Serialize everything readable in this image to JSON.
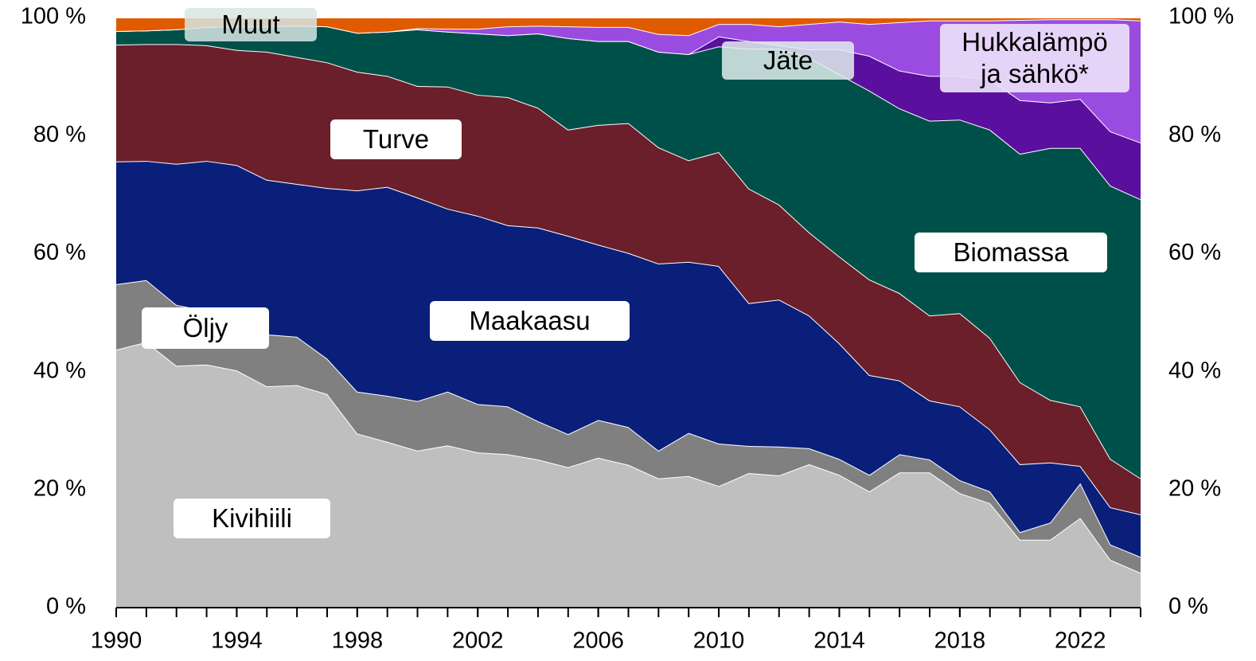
{
  "chart_data": {
    "type": "stacked_area",
    "x": [
      1990,
      1991,
      1992,
      1993,
      1994,
      1995,
      1996,
      1997,
      1998,
      1999,
      2000,
      2001,
      2002,
      2003,
      2004,
      2005,
      2006,
      2007,
      2008,
      2009,
      2010,
      2011,
      2012,
      2013,
      2014,
      2015,
      2016,
      2017,
      2018,
      2019,
      2020,
      2021,
      2022,
      2023,
      2024
    ],
    "xlim": [
      1990,
      2024
    ],
    "xticks": [
      1990,
      1994,
      1998,
      2002,
      2006,
      2010,
      2014,
      2018,
      2022
    ],
    "ylim": [
      0,
      100
    ],
    "yticks": [
      {
        "value": 0,
        "label": "0 %"
      },
      {
        "value": 20,
        "label": "20 %"
      },
      {
        "value": 40,
        "label": "40 %"
      },
      {
        "value": 60,
        "label": "60 %"
      },
      {
        "value": 80,
        "label": "80 %"
      },
      {
        "value": 100,
        "label": "100 %"
      }
    ],
    "series": [
      {
        "name": "Kivihiili",
        "color": "#bfbfbf",
        "values": [
          43.7,
          45,
          41,
          41.2,
          40.2,
          37.5,
          37.7,
          36.2,
          29.5,
          28.1,
          26.6,
          27.5,
          26.3,
          26,
          25.1,
          23.8,
          25.4,
          24.2,
          21.9,
          22.3,
          20.6,
          22.8,
          22.4,
          24.3,
          22.5,
          19.7,
          22.9,
          22.9,
          19.4,
          17.7,
          11.5,
          11.5,
          15.2,
          8.1,
          5.9
        ]
      },
      {
        "name": "Öljy",
        "color": "#808080",
        "values": [
          11.1,
          10.5,
          10.3,
          9.1,
          8.8,
          8.8,
          8.2,
          6,
          7.1,
          7.8,
          8.4,
          9.1,
          8.2,
          8.1,
          6.5,
          5.6,
          6.4,
          6.4,
          4.7,
          7.3,
          7.2,
          4.6,
          4.9,
          2.7,
          2.7,
          2.8,
          3.1,
          2.2,
          2.2,
          2,
          1.3,
          2.9,
          5.9,
          2.6,
          2.7
        ]
      },
      {
        "name": "Maakaasu",
        "color": "#0a1f7a",
        "values": [
          20.8,
          20.2,
          23.9,
          25.4,
          26,
          26.2,
          25.9,
          28.9,
          34.1,
          35.4,
          34.5,
          31,
          31.9,
          30.7,
          32.8,
          33.6,
          29.7,
          29.5,
          31.7,
          29,
          30.1,
          24.2,
          24.9,
          22.5,
          19.6,
          16.9,
          12.5,
          10,
          12.5,
          10.5,
          11.5,
          10.2,
          2.9,
          6.3,
          7.2
        ]
      },
      {
        "name": "Turve",
        "color": "#6a1f2a",
        "values": [
          19.8,
          19.8,
          20.3,
          19.6,
          19.5,
          21.7,
          21.5,
          21.3,
          20.1,
          18.8,
          18.9,
          20.7,
          20.5,
          21.7,
          20.3,
          18,
          20.3,
          22,
          19.7,
          17.2,
          19.3,
          19.4,
          16.1,
          14.1,
          14.7,
          16.2,
          14.8,
          14.4,
          15.8,
          15.5,
          13.9,
          10.6,
          10.1,
          8.2,
          6.1
        ]
      },
      {
        "name": "Biomassa",
        "color": "#00504a",
        "values": [
          2.3,
          2.3,
          2.5,
          3.1,
          4,
          4.3,
          5.3,
          6.1,
          6.6,
          7.5,
          9.6,
          9.3,
          10.4,
          10.5,
          12.6,
          15.5,
          14.2,
          13.9,
          16.2,
          18,
          17.9,
          23.7,
          26.4,
          29.6,
          30.9,
          32,
          31.3,
          33,
          32.8,
          35.3,
          38.7,
          42.7,
          43.8,
          46.3,
          47.3
        ]
      },
      {
        "name": "Jäte",
        "color": "#5a0f9e",
        "values": [
          0,
          0,
          0,
          0,
          0,
          0,
          0,
          0,
          0,
          0,
          0,
          0,
          0,
          0,
          0,
          0,
          0,
          0,
          0,
          0,
          1.7,
          1.3,
          0.6,
          1.4,
          4.2,
          5.9,
          6.4,
          7.6,
          7.4,
          8.5,
          9.1,
          7.7,
          8.3,
          9.2,
          9.6
        ]
      },
      {
        "name": "Hukkalämpö ja sähkö*",
        "color": "#9b4ce0",
        "values": [
          0,
          0,
          0,
          0,
          0,
          0,
          0,
          0,
          0,
          0,
          0.2,
          0.5,
          0.8,
          1.5,
          1.3,
          2,
          2.4,
          2.4,
          3,
          3.2,
          2.1,
          2.9,
          3.2,
          4.3,
          4.7,
          5.4,
          8.2,
          9.4,
          9.4,
          10,
          13.6,
          14.1,
          13.5,
          19,
          20.7
        ]
      },
      {
        "name": "Muut",
        "color": "#e05a00",
        "values": [
          2.3,
          2.2,
          2,
          1.6,
          1.5,
          1.5,
          1.4,
          1.5,
          2.6,
          2.4,
          1.8,
          1.9,
          1.9,
          1.5,
          1.4,
          1.5,
          1.6,
          1.6,
          2.8,
          3,
          1.1,
          1.1,
          1.5,
          1.1,
          0.7,
          1.1,
          0.8,
          0.5,
          0.5,
          0.5,
          0.4,
          0.3,
          0.3,
          0.3,
          0.5
        ]
      }
    ]
  }
}
